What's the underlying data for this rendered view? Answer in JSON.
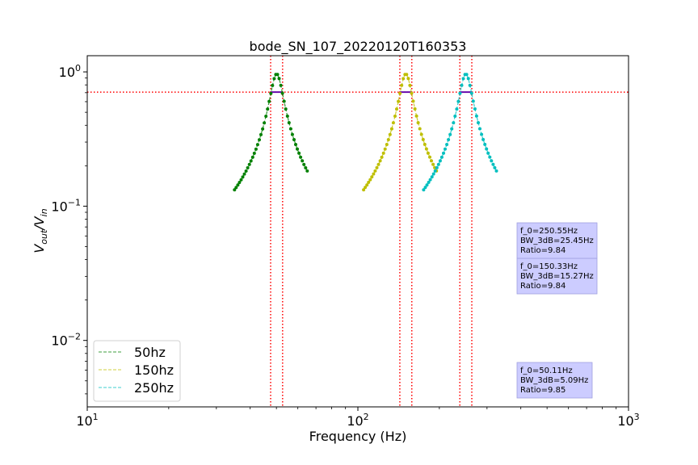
{
  "chart_data": {
    "type": "line",
    "title": "bode_SN_107_20220120T160353",
    "xlabel": "Frequency (Hz)",
    "ylabel": {
      "main": "V",
      "sub1": "out",
      "slash": "/V",
      "sub2": "in"
    },
    "x_scale": "log",
    "y_scale": "log",
    "xlim": [
      10,
      1000
    ],
    "ylim": [
      0.0032,
      1.32
    ],
    "x_ticks": [
      {
        "value": 10,
        "base": "10",
        "exp": "1"
      },
      {
        "value": 100,
        "base": "10",
        "exp": "2"
      },
      {
        "value": 1000,
        "base": "10",
        "exp": "3"
      }
    ],
    "y_ticks": [
      {
        "value": 0.01,
        "base": "10",
        "exp": "−2"
      },
      {
        "value": 0.1,
        "base": "10",
        "exp": "−1"
      },
      {
        "value": 1,
        "base": "10",
        "exp": "0"
      }
    ],
    "grid": false,
    "legend_position": "lower-left",
    "threshold_line": {
      "y": 0.7071,
      "color": "#ff0000",
      "style": "dotted"
    },
    "series": [
      {
        "name": "50hz",
        "color": "#008000",
        "marker_color": "#008000",
        "f0": 50.11,
        "bandwidth": 5.09,
        "x_range": [
          35,
          65
        ],
        "q": 9.85,
        "cutoffs": [
          47.6,
          52.7
        ],
        "annotation": [
          "f_0=50.11Hz",
          "BW_3dB=5.09Hz",
          "Ratio=9.85"
        ]
      },
      {
        "name": "150hz",
        "color": "#bfbf00",
        "marker_color": "#bfbf00",
        "f0": 150.33,
        "bandwidth": 15.27,
        "x_range": [
          105,
          195
        ],
        "q": 9.84,
        "cutoffs": [
          142.9,
          158.2
        ],
        "annotation": [
          "f_0=150.33Hz",
          "BW_3dB=15.27Hz",
          "Ratio=9.84"
        ]
      },
      {
        "name": "250hz",
        "color": "#00bfbf",
        "marker_color": "#00bfbf",
        "f0": 250.55,
        "bandwidth": 25.45,
        "x_range": [
          175,
          325
        ],
        "q": 9.84,
        "cutoffs": [
          238.1,
          263.6
        ],
        "annotation": [
          "f_0=250.55Hz",
          "BW_3dB=25.45Hz",
          "Ratio=9.84"
        ]
      }
    ]
  }
}
